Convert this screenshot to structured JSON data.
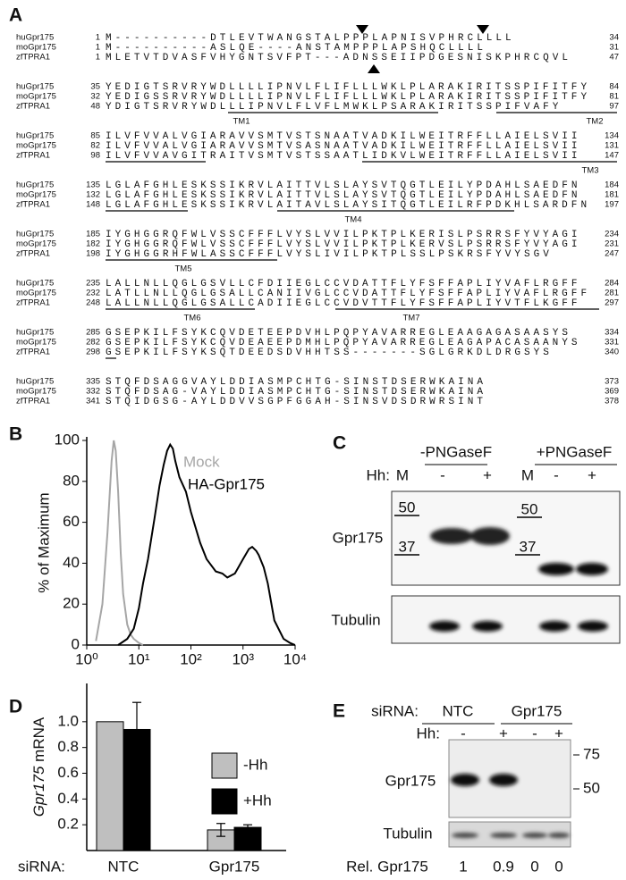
{
  "panel_labels": [
    "A",
    "B",
    "C",
    "D",
    "E"
  ],
  "alignment": {
    "blocks": [
      {
        "rows": [
          {
            "name": "huGpr175",
            "start": 1,
            "sequence": "M----------DTLEVTWANGSTALPPPLAPNISVPHRCLLLL",
            "end": 34
          },
          {
            "name": "moGpr175",
            "start": 1,
            "sequence": "M----------ASLQE----ANSTAMPPPLAPSHQCLLLL",
            "end": 31
          },
          {
            "name": "zfTPRA1",
            "start": 1,
            "sequence": "MLETVTDVASFVHYGNTSVFPT---ADNSSEIIPDGESNISKPHRCQVL",
            "end": 47
          }
        ],
        "tm": []
      },
      {
        "rows": [
          {
            "name": "huGpr175",
            "start": 35,
            "sequence": "YEDIGTSRVRYWDLLLLIPNVLFLIFLLLWKLPLARAKIRITSSPIFITFY",
            "end": 84
          },
          {
            "name": "moGpr175",
            "start": 32,
            "sequence": "YEDIGSSRVRYWDLLLLIPNVLFLIFLLLWKLPLARAKIRITSSPIFITFY",
            "end": 81
          },
          {
            "name": "zfTPRA1",
            "start": 48,
            "sequence": "YDIGTSRVRYWDLLLIPNVLFLVFLMWKLPSARAKIRITSSPIFVAFY",
            "end": 97
          }
        ],
        "tm": [
          "TM1",
          "TM2"
        ]
      },
      {
        "rows": [
          {
            "name": "huGpr175",
            "start": 85,
            "sequence": "ILVFVVALVGIARAVVSMTVSTSNAATVADKILWEITRFFLLAIELSVII",
            "end": 134
          },
          {
            "name": "moGpr175",
            "start": 82,
            "sequence": "ILVFVVALVGIARAVVSMTVSASNAATVADKILWEITRFFLLAIELSVII",
            "end": 131
          },
          {
            "name": "zfTPRA1",
            "start": 98,
            "sequence": "ILVFVVAVGITRAITVSMTVSTSSAATLIDKVLWEITRFFLLAIELSVII",
            "end": 147
          }
        ],
        "tm": [
          "TM3"
        ]
      },
      {
        "rows": [
          {
            "name": "huGpr175",
            "start": 135,
            "sequence": "LGLAFGHLESKSSIKRVLAITTVLSLAYSVTQGTLEILYPDAHLSAEDFN",
            "end": 184
          },
          {
            "name": "moGpr175",
            "start": 132,
            "sequence": "LGLAFGHLESKSSIKRVLAITTVLSLAYSVTQGTLEILYPDAHLSAEDFN",
            "end": 181
          },
          {
            "name": "zfTPRA1",
            "start": 148,
            "sequence": "LGLAFGHLESKSSIKRVLAITAVLSLAYSITQGTLEILRFPDKHLSARDFN",
            "end": 197
          }
        ],
        "tm": [
          "TM4"
        ]
      },
      {
        "rows": [
          {
            "name": "huGpr175",
            "start": 185,
            "sequence": "IYGHGGRQFWLVSSCFFFLVYSLVVILPKTPLKERISLPSRRSFYVYAGI",
            "end": 234
          },
          {
            "name": "moGpr175",
            "start": 182,
            "sequence": "IYGHGGRQFWLVSSCFFFLVYSLVVILPKTPLKERVSLPSRRSFYVYAGI",
            "end": 231
          },
          {
            "name": "zfTPRA1",
            "start": 198,
            "sequence": "IYGHGGRHFWLASSCFFFLVYSLIVILPKTPLSSLPSKRSFYVYSGV",
            "end": 247
          }
        ],
        "tm": [
          "TM5"
        ]
      },
      {
        "rows": [
          {
            "name": "huGpr175",
            "start": 235,
            "sequence": "LALLNLLQGLGSVLLCFDIIEGLCCVDATTFLYFSFFAPLIYVAFLRGFF",
            "end": 284
          },
          {
            "name": "moGpr175",
            "start": 232,
            "sequence": "LATLLNLLQGLGSALLCANIIVGLCCVDATTFLYFSFFAPLIYVAFLRGFF",
            "end": 281
          },
          {
            "name": "zfTPRA1",
            "start": 248,
            "sequence": "LALLNLLQGLGSALLCADIIEGLCCVDVTTFLYFSFFAPLIYVTFLKGFF",
            "end": 297
          }
        ],
        "tm": [
          "TM6",
          "TM7"
        ]
      },
      {
        "rows": [
          {
            "name": "huGpr175",
            "start": 285,
            "sequence": "GSEPKILFSYKCQVDETEEPDVHLPQPYAVARREGLEAAGAGASAASYS",
            "end": 334
          },
          {
            "name": "moGpr175",
            "start": 282,
            "sequence": "GSEPKILFSYKCQVDEAEEPDMHLPQPYAVARREGLEAGAPACASAANYS",
            "end": 331
          },
          {
            "name": "zfTPRA1",
            "start": 298,
            "sequence": "GSEPKILFSYKSQTDEEDSDVHHTSS-------SGLGRKDLDRGSYS",
            "end": 340
          }
        ],
        "tm": []
      },
      {
        "rows": [
          {
            "name": "huGpr175",
            "start": 335,
            "sequence": "STQFDSAGGVAYLDDIASMPCHTG-SINSTDSERWKAINA",
            "end": 373
          },
          {
            "name": "moGpr175",
            "start": 332,
            "sequence": "STQFDSAG-VAYLDDIASMPCHTG-SINSTDSERWKAINA",
            "end": 369
          },
          {
            "name": "zfTPRA1",
            "start": 341,
            "sequence": "STQIDGSG-AYLDDVVSGPFGGAH-SINSVDSDRWRSINT",
            "end": 378
          }
        ],
        "tm": []
      }
    ]
  },
  "chart_data": [
    {
      "type": "line",
      "y_label": "% of Maximum",
      "xscale": "log",
      "xlim": [
        1,
        10000
      ],
      "ylim": [
        0,
        100
      ],
      "xticks": [
        {
          "value": 1,
          "label": "10⁰"
        },
        {
          "value": 10,
          "label": "10¹"
        },
        {
          "value": 100,
          "label": "10²"
        },
        {
          "value": 1000,
          "label": "10³"
        },
        {
          "value": 10000,
          "label": "10⁴"
        }
      ],
      "yticks": [
        0,
        20,
        40,
        60,
        80,
        100
      ],
      "series": [
        {
          "name": "Mock",
          "color": "#a6a6a6",
          "x": [
            1.5,
            2,
            2.5,
            3,
            3.3,
            3.6,
            4,
            4.5,
            5,
            6,
            7,
            8,
            10,
            12
          ],
          "values": [
            2,
            20,
            55,
            90,
            100,
            95,
            75,
            45,
            25,
            10,
            5,
            3,
            1,
            0
          ]
        },
        {
          "name": "HA-Gpr175",
          "color": "#000000",
          "x": [
            4,
            6,
            8,
            10,
            12,
            15,
            20,
            25,
            30,
            35,
            40,
            45,
            50,
            60,
            80,
            100,
            150,
            200,
            300,
            400,
            500,
            700,
            1000,
            1300,
            1500,
            1800,
            2000,
            2500,
            3000,
            4000,
            6000,
            8000,
            10000
          ],
          "values": [
            0,
            3,
            8,
            18,
            30,
            42,
            62,
            78,
            88,
            95,
            98,
            96,
            90,
            82,
            75,
            65,
            50,
            42,
            36,
            35,
            33,
            35,
            42,
            47,
            48,
            46,
            44,
            38,
            30,
            12,
            3,
            1,
            0
          ]
        }
      ]
    },
    {
      "type": "bar",
      "y_label": [
        "Gpr175",
        "mRNA"
      ],
      "x_label": "siRNA:",
      "categories": [
        "NTC",
        "Gpr175"
      ],
      "ylim": [
        0,
        1.2
      ],
      "yticks": [
        0.2,
        0.4,
        0.6,
        0.8,
        {
          "value": 1,
          "label": "1.0"
        }
      ],
      "series": [
        {
          "name": "-Hh",
          "color": "#bfbfbf",
          "values": [
            1,
            0.16
          ],
          "errors": [
            null,
            0.05
          ]
        },
        {
          "name": "+Hh",
          "color": "#000000",
          "values": [
            0.94,
            0.18
          ],
          "errors": [
            0.21,
            0.02
          ]
        }
      ]
    }
  ],
  "blot_c": {
    "treatments": [
      "-PNGaseF",
      "+PNGaseF"
    ],
    "hh_label": "Hh:",
    "lanes": [
      "M",
      "-",
      "+",
      "M",
      "-",
      "+"
    ],
    "markers": [
      50,
      37,
      50,
      37
    ],
    "row_labels": [
      "Gpr175",
      "Tubulin"
    ]
  },
  "blot_e": {
    "sirna_label": "siRNA:",
    "groups": [
      "NTC",
      "Gpr175"
    ],
    "hh_label": "Hh:",
    "lanes": [
      "-",
      "+",
      "-",
      "+"
    ],
    "markers": [
      75,
      50
    ],
    "row_labels": [
      "Gpr175",
      "Tubulin"
    ],
    "quant_label": "Rel. Gpr175",
    "quant_values": [
      1,
      0.9,
      0,
      0
    ]
  }
}
